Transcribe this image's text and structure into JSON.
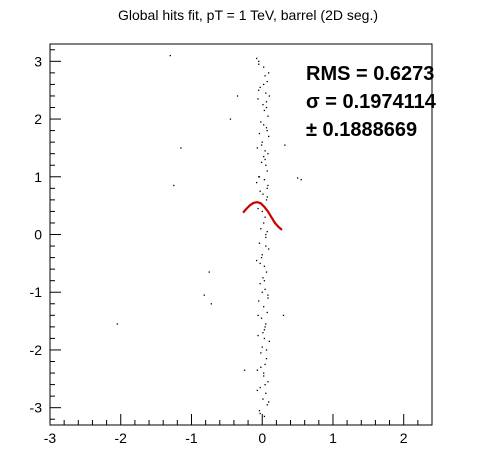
{
  "chart_data": {
    "type": "scatter",
    "title": "Global hits fit, pT = 1 TeV, barrel (2D seg.)",
    "xlabel": "",
    "ylabel": "",
    "xlim": [
      -3,
      2.4
    ],
    "ylim": [
      -3.3,
      3.3
    ],
    "x_ticks": [
      "-3",
      "-2",
      "-1",
      "0",
      "1",
      "2"
    ],
    "y_ticks": [
      "-3",
      "-2",
      "-1",
      "0",
      "1",
      "2",
      "3"
    ],
    "grid": false,
    "stats_box": {
      "rms_label": "RMS = 0.6273",
      "sigma_label": "σ = 0.1974114",
      "error_label": "± 0.1888669"
    },
    "series": [
      {
        "kind": "points",
        "color": "#000000",
        "x": [
          -0.08,
          -0.05,
          0.02,
          0.04,
          0.07,
          -0.03,
          0.05,
          0.1,
          -0.06,
          0.01,
          0.03,
          0.08,
          -0.02,
          0.06,
          -0.04,
          0.09,
          0.0,
          -0.07,
          0.04,
          0.02,
          -0.01,
          0.05,
          0.07,
          -0.05,
          0.03,
          0.08,
          -0.03,
          0.01,
          0.06,
          -0.06,
          0.04,
          0.02,
          -0.02,
          0.07,
          0.05,
          -0.04,
          0.09,
          0.0,
          -0.08,
          0.03,
          0.06,
          0.01,
          -0.03,
          0.04,
          0.08,
          -0.05,
          0.02,
          0.07,
          -0.01,
          0.05,
          0.03,
          -0.06,
          0.1,
          0.0,
          -0.02,
          0.06,
          0.04,
          -0.07,
          0.02,
          0.08,
          -0.03,
          0.05,
          0.01,
          0.07,
          -0.04,
          0.03,
          0.09,
          -0.05,
          0.06,
          0.02,
          -0.01,
          0.04,
          -0.08,
          0.07,
          0.0,
          0.05,
          -0.03,
          0.03,
          0.08,
          -0.06,
          0.01,
          0.06,
          -0.02,
          0.04,
          0.09,
          -0.05,
          0.02,
          0.07,
          -0.04,
          0.05,
          0.0,
          0.03,
          -0.07,
          0.06,
          0.08,
          -0.01,
          0.04,
          0.02,
          -0.03,
          0.07,
          -1.3,
          -1.15,
          -1.25,
          -0.35,
          -0.45,
          -0.75,
          -0.72,
          -2.05,
          -0.82,
          0.32,
          0.5,
          0.55,
          0.3,
          -0.25
        ],
        "y": [
          3.05,
          2.95,
          2.9,
          2.75,
          2.65,
          2.55,
          2.45,
          2.4,
          2.35,
          2.25,
          2.15,
          2.05,
          1.95,
          1.85,
          1.75,
          1.7,
          1.6,
          1.5,
          1.45,
          1.35,
          1.25,
          1.2,
          1.1,
          1.0,
          0.95,
          0.85,
          0.75,
          0.7,
          0.6,
          0.45,
          0.3,
          0.2,
          0.1,
          0.05,
          -0.05,
          -0.15,
          -0.25,
          -0.35,
          -0.45,
          -0.55,
          -0.65,
          -0.75,
          -0.85,
          -0.95,
          -1.05,
          -1.15,
          -1.25,
          -1.35,
          -1.45,
          -1.55,
          -1.65,
          -1.75,
          -1.85,
          -1.95,
          -2.05,
          -2.15,
          -2.25,
          -2.35,
          -2.45,
          -2.55,
          -2.65,
          -2.75,
          -2.85,
          -2.95,
          -3.05,
          -3.15,
          2.8,
          2.5,
          2.2,
          1.9,
          1.55,
          1.3,
          0.9,
          0.65,
          0.4,
          -0.2,
          -0.5,
          -0.8,
          -1.1,
          -1.4,
          -1.7,
          -2.0,
          -2.3,
          -2.6,
          -2.9,
          3.0,
          2.6,
          1.8,
          1.0,
          0.0,
          -1.0,
          -1.8,
          -2.7,
          2.3,
          1.4,
          -0.4,
          -1.6,
          -2.4,
          -3.1,
          0.8,
          3.1,
          1.5,
          0.85,
          2.4,
          2.0,
          -0.65,
          -1.2,
          -1.55,
          -1.05,
          1.55,
          0.98,
          0.95,
          -1.4,
          -2.35
        ]
      },
      {
        "kind": "fit_line",
        "color": "#cc0000",
        "x": [
          -0.27,
          -0.22,
          -0.17,
          -0.12,
          -0.07,
          -0.02,
          0.03,
          0.08,
          0.13,
          0.18,
          0.23,
          0.28
        ],
        "y": [
          0.38,
          0.45,
          0.51,
          0.55,
          0.56,
          0.54,
          0.48,
          0.4,
          0.3,
          0.2,
          0.13,
          0.08
        ]
      }
    ]
  }
}
